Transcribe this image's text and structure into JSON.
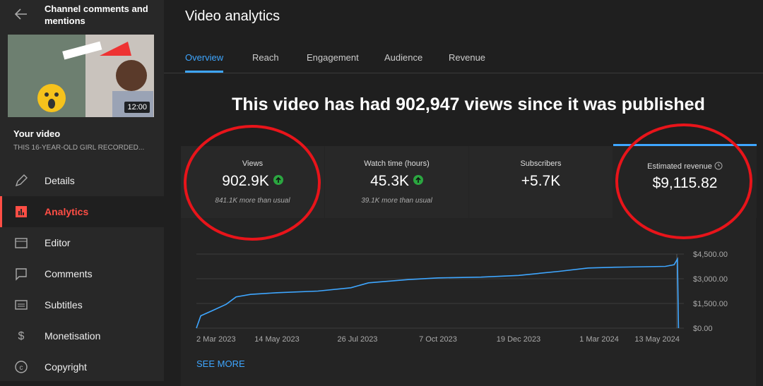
{
  "sidebar": {
    "header": "Channel comments and mentions",
    "thumbnail_duration": "12:00",
    "video_label": "Your video",
    "video_title": "THIS 16-YEAR-OLD GIRL RECORDED...",
    "nav": [
      "Details",
      "Analytics",
      "Editor",
      "Comments",
      "Subtitles",
      "Monetisation",
      "Copyright"
    ],
    "active": "Analytics"
  },
  "main": {
    "title": "Video analytics",
    "tabs": [
      "Overview",
      "Reach",
      "Engagement",
      "Audience",
      "Revenue"
    ],
    "active_tab": "Overview",
    "headline": "This video has had 902,947 views since it was published",
    "cards": [
      {
        "label": "Views",
        "value": "902.9K",
        "note": "841.1K more than usual"
      },
      {
        "label": "Watch time (hours)",
        "value": "45.3K",
        "note": "39.1K more than usual"
      },
      {
        "label": "Subscribers",
        "value": "+5.7K"
      },
      {
        "label": "Estimated revenue",
        "value": "$9,115.82"
      }
    ],
    "see_more": "SEE MORE"
  },
  "chart_data": {
    "type": "line",
    "x": [
      "2023-03-02",
      "2023-03-06",
      "2023-03-16",
      "2023-03-29",
      "2023-04-07",
      "2023-04-20",
      "2023-05-14",
      "2023-06-20",
      "2023-07-20",
      "2023-08-05",
      "2023-09-10",
      "2023-10-07",
      "2023-11-15",
      "2023-12-19",
      "2024-01-25",
      "2024-02-20",
      "2024-03-15",
      "2024-04-30",
      "2024-05-08",
      "2024-05-11",
      "2024-05-12"
    ],
    "values": [
      0,
      750,
      1050,
      1450,
      1900,
      2050,
      2150,
      2250,
      2450,
      2750,
      2950,
      3050,
      3100,
      3200,
      3450,
      3650,
      3700,
      3750,
      3850,
      4200,
      0
    ],
    "color": "#3ea6ff",
    "xlim": [
      "2023-03-02",
      "2024-05-13"
    ],
    "xticks": [
      {
        "value": "2023-03-02",
        "label": "2 Mar 2023"
      },
      {
        "value": "2023-05-14",
        "label": "14 May 2023"
      },
      {
        "value": "2023-07-26",
        "label": "26 Jul 2023"
      },
      {
        "value": "2023-10-07",
        "label": "7 Oct 2023"
      },
      {
        "value": "2023-12-19",
        "label": "19 Dec 2023"
      },
      {
        "value": "2024-03-01",
        "label": "1 Mar 2024"
      },
      {
        "value": "2024-05-13",
        "label": "13 May 2024"
      }
    ],
    "ylim": [
      0,
      4500
    ],
    "yticks": [
      {
        "value": 0,
        "label": "$0.00"
      },
      {
        "value": 1500,
        "label": "$1,500.00"
      },
      {
        "value": 3000,
        "label": "$3,000.00"
      },
      {
        "value": 4500,
        "label": "$4,500.00"
      }
    ],
    "grid": true
  }
}
